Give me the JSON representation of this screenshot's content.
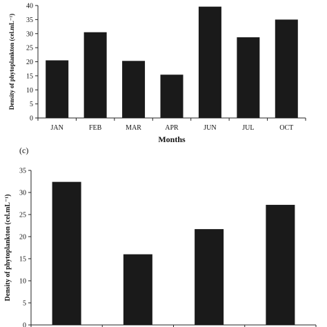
{
  "chart_data": [
    {
      "type": "bar",
      "title": "",
      "xlabel": "Months",
      "ylabel": "Density of phytoplankton (cel.mL⁻¹)",
      "ylim": [
        0,
        40
      ],
      "yticks": [
        0,
        5,
        10,
        15,
        20,
        25,
        30,
        35,
        40
      ],
      "categories": [
        "JAN",
        "FEB",
        "MAR",
        "APR",
        "JUN",
        "JUL",
        "OCT"
      ],
      "values": [
        20.5,
        30.5,
        20.3,
        15.4,
        39.6,
        28.7,
        35.0
      ],
      "bar_color": "#1a1a1a",
      "grid": false
    },
    {
      "type": "bar",
      "panel_label": "(c)",
      "title": "",
      "xlabel": "",
      "ylabel": "Density of phytoplankton (cel.mL⁻¹)",
      "ylim": [
        0,
        35
      ],
      "yticks": [
        0,
        5,
        10,
        15,
        20,
        25,
        30,
        35
      ],
      "categories": [
        "",
        "",
        "",
        ""
      ],
      "values": [
        32.4,
        16.0,
        21.7,
        27.2
      ],
      "bar_color": "#1a1a1a",
      "grid": false
    }
  ]
}
